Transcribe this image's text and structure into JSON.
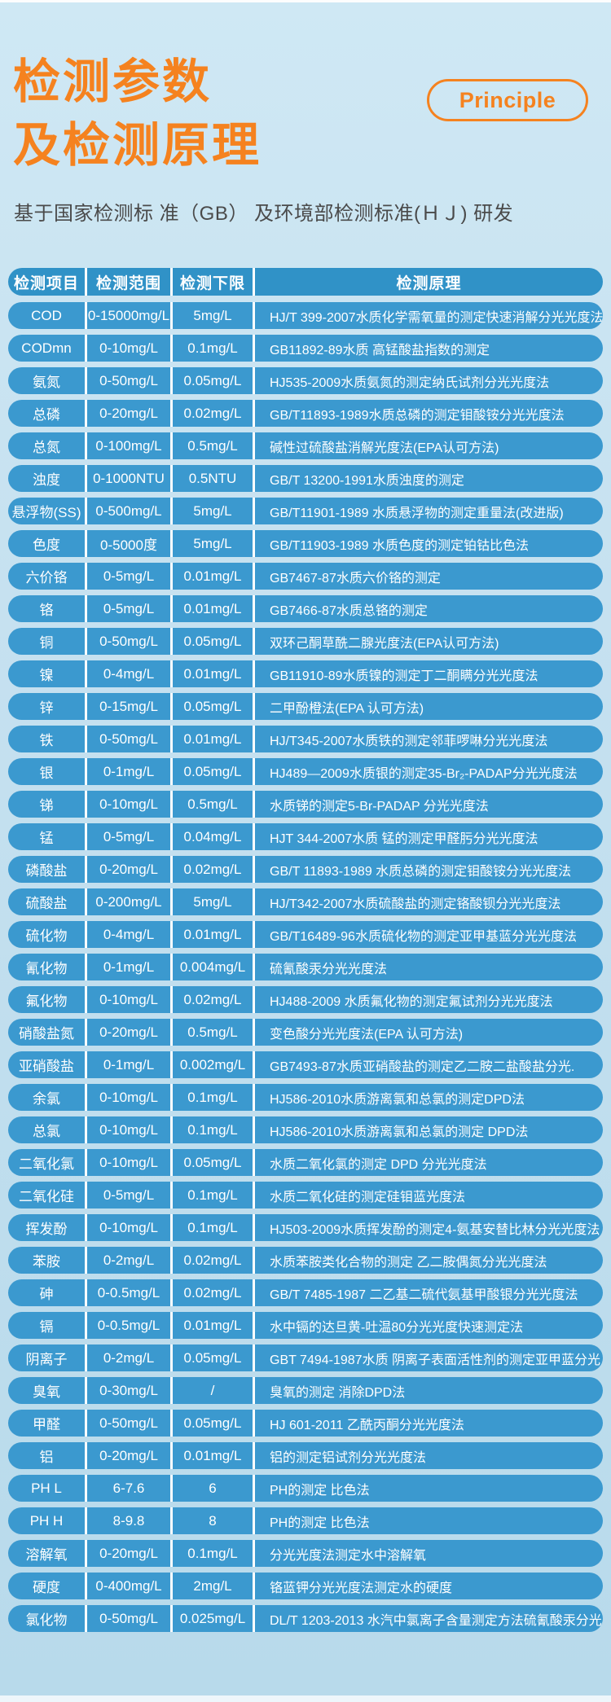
{
  "page": {
    "title_line1": "检测参数",
    "title_line2": "及检测原理",
    "badge": "Principle",
    "subtitle": "基于国家检测标 准（GB） 及环境部检测标准(ＨＪ) 研发"
  },
  "colors": {
    "accent_orange": "#f5821f",
    "row_blue": "#3b99cf",
    "header_blue": "#3092c7",
    "background_blue": "#c6e1f0",
    "text_white": "#ffffff",
    "subtitle_gray": "#4a4a4a"
  },
  "table": {
    "headers": [
      "检测项目",
      "检测范围",
      "检测下限",
      "检测原理"
    ],
    "rows": [
      {
        "item": "COD",
        "range": "0-15000mg/L",
        "limit": "5mg/L",
        "principle": "HJ/T 399-2007水质化学需氧量的测定快速消解分光光度法"
      },
      {
        "item": "CODmn",
        "range": "0-10mg/L",
        "limit": "0.1mg/L",
        "principle": "GB11892-89水质 高锰酸盐指数的测定"
      },
      {
        "item": "氨氮",
        "range": "0-50mg/L",
        "limit": "0.05mg/L",
        "principle": "HJ535-2009水质氨氮的测定纳氏试剂分光光度法"
      },
      {
        "item": "总磷",
        "range": "0-20mg/L",
        "limit": "0.02mg/L",
        "principle": "GB/T11893-1989水质总磷的测定钼酸铵分光光度法"
      },
      {
        "item": "总氮",
        "range": "0-100mg/L",
        "limit": "0.5mg/L",
        "principle": "碱性过硫酸盐消解光度法(EPA认可方法)"
      },
      {
        "item": "浊度",
        "range": "0-1000NTU",
        "limit": "0.5NTU",
        "principle": "GB/T 13200-1991水质浊度的测定"
      },
      {
        "item": "悬浮物(SS)",
        "range": "0-500mg/L",
        "limit": "5mg/L",
        "principle": "GB/T11901-1989 水质悬浮物的测定重量法(改进版)"
      },
      {
        "item": "色度",
        "range": "0-5000度",
        "limit": "5mg/L",
        "principle": "GB/T11903-1989 水质色度的测定铂钴比色法"
      },
      {
        "item": "六价铬",
        "range": "0-5mg/L",
        "limit": "0.01mg/L",
        "principle": "GB7467-87水质六价铬的测定"
      },
      {
        "item": "铬",
        "range": "0-5mg/L",
        "limit": "0.01mg/L",
        "principle": "GB7466-87水质总铬的测定"
      },
      {
        "item": "铜",
        "range": "0-50mg/L",
        "limit": "0.05mg/L",
        "principle": "双环己酮草酰二腺光度法(EPA认可方法)"
      },
      {
        "item": "镍",
        "range": "0-4mg/L",
        "limit": "0.01mg/L",
        "principle": "GB11910-89水质镍的测定丁二酮瞒分光光度法"
      },
      {
        "item": "锌",
        "range": "0-15mg/L",
        "limit": "0.05mg/L",
        "principle": "二甲酚橙法(EPA 认可方法)"
      },
      {
        "item": "铁",
        "range": "0-50mg/L",
        "limit": "0.01mg/L",
        "principle": "HJ/T345-2007水质铁的测定邻菲啰啉分光光度法"
      },
      {
        "item": "银",
        "range": "0-1mg/L",
        "limit": "0.05mg/L",
        "principle": "HJ489—2009水质银的测定35-Br₂-PADAP分光光度法"
      },
      {
        "item": "锑",
        "range": "0-10mg/L",
        "limit": "0.5mg/L",
        "principle": "水质锑的测定5-Br-PADAP 分光光度法"
      },
      {
        "item": "锰",
        "range": "0-5mg/L",
        "limit": "0.04mg/L",
        "principle": "HJT 344-2007水质 锰的测定甲醛肟分光光度法"
      },
      {
        "item": "磷酸盐",
        "range": "0-20mg/L",
        "limit": "0.02mg/L",
        "principle": "GB/T 11893-1989 水质总磷的测定钼酸铵分光光度法"
      },
      {
        "item": "硫酸盐",
        "range": "0-200mg/L",
        "limit": "5mg/L",
        "principle": "HJ/T342-2007水质硫酸盐的测定铬酸钡分光光度法"
      },
      {
        "item": "硫化物",
        "range": "0-4mg/L",
        "limit": "0.01mg/L",
        "principle": "GB/T16489-96水质硫化物的测定亚甲基蓝分光光度法"
      },
      {
        "item": "氰化物",
        "range": "0-1mg/L",
        "limit": "0.004mg/L",
        "principle": "硫氰酸汞分光光度法"
      },
      {
        "item": "氟化物",
        "range": "0-10mg/L",
        "limit": "0.02mg/L",
        "principle": "HJ488-2009 水质氟化物的测定氟试剂分光光度法"
      },
      {
        "item": "硝酸盐氮",
        "range": "0-20mg/L",
        "limit": "0.5mg/L",
        "principle": "变色酸分光光度法(EPA 认可方法)"
      },
      {
        "item": "亚硝酸盐",
        "range": "0-1mg/L",
        "limit": "0.002mg/L",
        "principle": "GB7493-87水质亚硝酸盐的测定乙二胺二盐酸盐分光."
      },
      {
        "item": "余氯",
        "range": "0-10mg/L",
        "limit": "0.1mg/L",
        "principle": "HJ586-2010水质游离氯和总氯的测定DPD法"
      },
      {
        "item": "总氯",
        "range": "0-10mg/L",
        "limit": "0.1mg/L",
        "principle": "HJ586-2010水质游离氯和总氯的测定 DPD法"
      },
      {
        "item": "二氧化氯",
        "range": "0-10mg/L",
        "limit": "0.05mg/L",
        "principle": "水质二氧化氯的测定 DPD 分光光度法"
      },
      {
        "item": "二氧化硅",
        "range": "0-5mg/L",
        "limit": "0.1mg/L",
        "principle": "水质二氧化硅的测定硅钼蓝光度法"
      },
      {
        "item": "挥发酚",
        "range": "0-10mg/L",
        "limit": "0.1mg/L",
        "principle": "HJ503-2009水质挥发酚的测定4-氨基安替比林分光光度法"
      },
      {
        "item": "苯胺",
        "range": "0-2mg/L",
        "limit": "0.02mg/L",
        "principle": "水质苯胺类化合物的测定 乙二胺偶氮分光光度法"
      },
      {
        "item": "砷",
        "range": "0-0.5mg/L",
        "limit": "0.02mg/L",
        "principle": "GB/T 7485-1987  二乙基二硫代氨基甲酸银分光光度法"
      },
      {
        "item": "镉",
        "range": "0-0.5mg/L",
        "limit": "0.01mg/L",
        "principle": "水中镉的达旦黄-吐温80分光光度快速测定法"
      },
      {
        "item": "阴离子",
        "range": "0-2mg/L",
        "limit": "0.05mg/L",
        "principle": "GBT 7494-1987水质 阴离子表面活性剂的测定亚甲蓝分光…"
      },
      {
        "item": "臭氧",
        "range": "0-30mg/L",
        "limit": "/",
        "principle": "臭氧的测定 消除DPD法"
      },
      {
        "item": "甲醛",
        "range": "0-50mg/L",
        "limit": "0.05mg/L",
        "principle": "HJ 601-2011 乙酰丙酮分光光度法"
      },
      {
        "item": "铝",
        "range": "0-20mg/L",
        "limit": "0.01mg/L",
        "principle": "铝的测定铝试剂分光光度法"
      },
      {
        "item": "PH L",
        "range": "6-7.6",
        "limit": "6",
        "principle": "PH的测定 比色法"
      },
      {
        "item": "PH H",
        "range": "8-9.8",
        "limit": "8",
        "principle": "PH的测定 比色法"
      },
      {
        "item": "溶解氧",
        "range": "0-20mg/L",
        "limit": "0.1mg/L",
        "principle": "分光光度法测定水中溶解氧"
      },
      {
        "item": "硬度",
        "range": "0-400mg/L",
        "limit": "2mg/L",
        "principle": "铬蓝钾分光光度法测定水的硬度"
      },
      {
        "item": "氯化物",
        "range": "0-50mg/L",
        "limit": "0.025mg/L",
        "principle": "DL/T 1203-2013 水汽中氯离子含量测定方法硫氰酸汞分光…"
      }
    ]
  }
}
